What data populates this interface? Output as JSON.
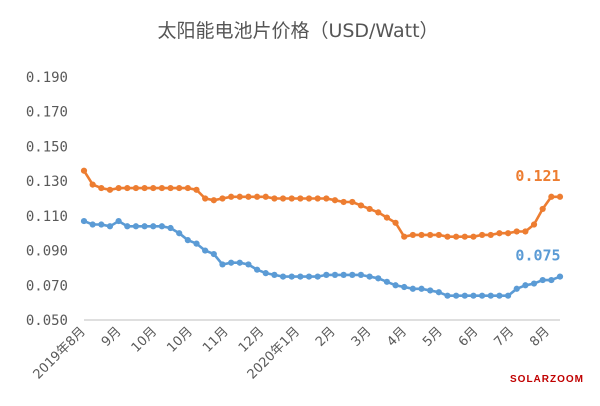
{
  "chart_data": {
    "type": "line",
    "title": "太阳能电池片价格（USD/Watt）",
    "ylim": [
      0.05,
      0.19
    ],
    "yticks": [
      "0.190",
      "0.170",
      "0.150",
      "0.130",
      "0.110",
      "0.090",
      "0.070",
      "0.050"
    ],
    "grid": false,
    "legend": "none",
    "x_tick_labels": [
      "2019年8月",
      "9月",
      "10月",
      "10月",
      "11月",
      "12月",
      "2020年1月",
      "2月",
      "3月",
      "4月",
      "5月",
      "6月",
      "7月",
      "8月"
    ],
    "series": [
      {
        "color": "#ed7d31",
        "end_label": "0.121",
        "values": [
          0.136,
          0.128,
          0.126,
          0.125,
          0.126,
          0.126,
          0.126,
          0.126,
          0.126,
          0.126,
          0.126,
          0.126,
          0.126,
          0.125,
          0.12,
          0.119,
          0.12,
          0.121,
          0.121,
          0.121,
          0.121,
          0.121,
          0.12,
          0.12,
          0.12,
          0.12,
          0.12,
          0.12,
          0.12,
          0.119,
          0.118,
          0.118,
          0.116,
          0.114,
          0.112,
          0.109,
          0.106,
          0.098,
          0.099,
          0.099,
          0.099,
          0.099,
          0.098,
          0.098,
          0.098,
          0.098,
          0.099,
          0.099,
          0.1,
          0.1,
          0.101,
          0.101,
          0.105,
          0.114,
          0.121,
          0.121
        ]
      },
      {
        "color": "#5b9bd5",
        "end_label": "0.075",
        "values": [
          0.107,
          0.105,
          0.105,
          0.104,
          0.107,
          0.104,
          0.104,
          0.104,
          0.104,
          0.104,
          0.103,
          0.1,
          0.096,
          0.094,
          0.09,
          0.088,
          0.082,
          0.083,
          0.083,
          0.082,
          0.079,
          0.077,
          0.076,
          0.075,
          0.075,
          0.075,
          0.075,
          0.075,
          0.076,
          0.076,
          0.076,
          0.076,
          0.076,
          0.075,
          0.074,
          0.072,
          0.07,
          0.069,
          0.068,
          0.068,
          0.067,
          0.066,
          0.064,
          0.064,
          0.064,
          0.064,
          0.064,
          0.064,
          0.064,
          0.064,
          0.068,
          0.07,
          0.071,
          0.073,
          0.073,
          0.075
        ]
      }
    ]
  },
  "watermark": {
    "text": "SOLARZOOM",
    "color": "#c00000"
  }
}
